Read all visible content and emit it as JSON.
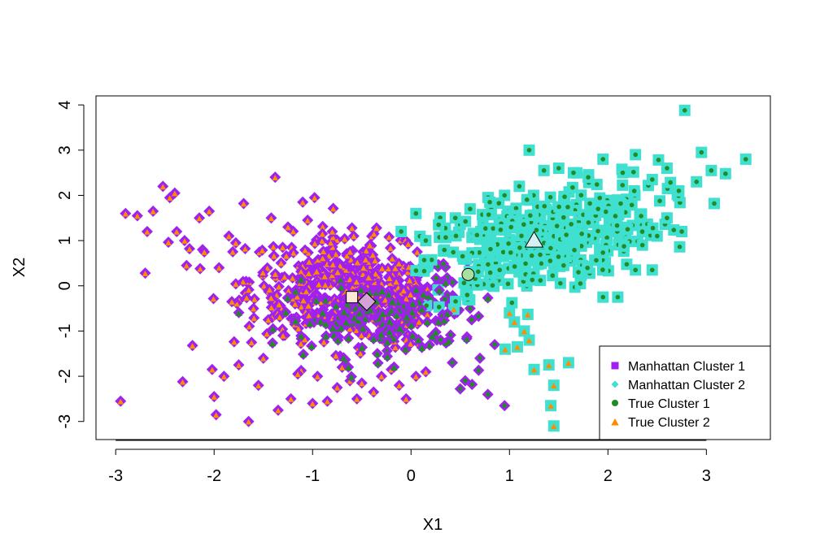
{
  "chart_data": {
    "type": "scatter",
    "title": "",
    "xlabel": "X1",
    "ylabel": "X2",
    "xlim": [
      -3.2,
      3.65
    ],
    "ylim": [
      -3.4,
      4.2
    ],
    "xticks": [
      -3,
      -2,
      -1,
      0,
      1,
      2,
      3
    ],
    "yticks": [
      -3,
      -2,
      -1,
      0,
      1,
      2,
      3,
      4
    ],
    "xtick_labels": [
      "-3",
      "-2",
      "-1",
      "0",
      "1",
      "2",
      "3"
    ],
    "ytick_labels": [
      "-3",
      "-2",
      "-1",
      "0",
      "1",
      "2",
      "3",
      "4"
    ],
    "legend_position": "bottom-right",
    "legend": [
      {
        "label": "Manhattan Cluster 1",
        "marker": "square",
        "color": "#A020F0"
      },
      {
        "label": "Manhattan Cluster 2",
        "marker": "diamond",
        "color": "#40E0D0"
      },
      {
        "label": "True Cluster 1",
        "marker": "circle",
        "color": "#228B22"
      },
      {
        "label": "True Cluster 2",
        "marker": "triangle",
        "color": "#FF8C00"
      }
    ],
    "colors": {
      "manhattan_1": "#A020F0",
      "manhattan_2": "#40E0D0",
      "true_1": "#228B22",
      "true_2": "#FF8C00"
    },
    "series": [
      {
        "cluster": "manhattan_1",
        "marker": "diamond",
        "points": [
          [
            -2.95,
            -2.55
          ],
          [
            -2.9,
            1.6
          ],
          [
            -2.78,
            1.55
          ],
          [
            -2.7,
            0.28
          ],
          [
            -2.68,
            1.2
          ],
          [
            -2.62,
            1.65
          ],
          [
            -2.52,
            2.2
          ],
          [
            -2.45,
            1.95
          ],
          [
            -2.4,
            2.05
          ],
          [
            -2.38,
            1.2
          ],
          [
            -2.32,
            -2.12
          ],
          [
            -2.3,
            1.0
          ],
          [
            -2.28,
            0.45
          ],
          [
            -2.25,
            0.82
          ],
          [
            -2.22,
            -1.32
          ],
          [
            -2.15,
            1.5
          ],
          [
            -2.1,
            0.75
          ],
          [
            -2.05,
            1.65
          ],
          [
            -2.02,
            -1.85
          ],
          [
            -2.0,
            -2.45
          ],
          [
            -1.98,
            -2.85
          ],
          [
            -1.95,
            0.4
          ],
          [
            -1.9,
            -2.0
          ],
          [
            -1.85,
            1.1
          ],
          [
            -1.82,
            -0.35
          ],
          [
            -1.78,
            0.95
          ],
          [
            -1.75,
            -1.75
          ],
          [
            -1.7,
            1.82
          ],
          [
            -1.65,
            -3.0
          ],
          [
            -1.62,
            -1.25
          ],
          [
            -1.6,
            -0.5
          ],
          [
            -1.55,
            -2.2
          ],
          [
            -1.5,
            -1.6
          ],
          [
            -1.45,
            -0.75
          ],
          [
            -1.42,
            1.5
          ],
          [
            -1.38,
            2.4
          ],
          [
            -1.35,
            -2.75
          ],
          [
            -1.3,
            -1.1
          ],
          [
            -1.25,
            1.3
          ],
          [
            -1.22,
            -2.5
          ],
          [
            -1.18,
            -0.85
          ],
          [
            -1.15,
            -1.95
          ],
          [
            -1.1,
            1.85
          ],
          [
            -1.05,
            1.45
          ],
          [
            -1.0,
            -2.6
          ],
          [
            -0.98,
            1.95
          ],
          [
            -0.95,
            -2.0
          ],
          [
            -0.9,
            1.15
          ],
          [
            -0.85,
            -2.55
          ],
          [
            -0.8,
            1.2
          ],
          [
            -0.75,
            -2.25
          ],
          [
            -0.7,
            -1.8
          ],
          [
            -0.62,
            -2.1
          ],
          [
            -0.6,
            1.28
          ],
          [
            -0.55,
            -2.5
          ],
          [
            -0.5,
            -2.15
          ],
          [
            -0.42,
            0.9
          ],
          [
            -0.38,
            -2.35
          ],
          [
            -0.35,
            1.28
          ],
          [
            -0.3,
            -2.0
          ],
          [
            -0.2,
            -1.85
          ],
          [
            -0.12,
            -2.2
          ],
          [
            -0.05,
            -2.5
          ],
          [
            0.05,
            -2.0
          ],
          [
            0.15,
            -1.9
          ],
          [
            0.2,
            -0.3
          ],
          [
            0.3,
            -1.2
          ],
          [
            0.42,
            -1.7
          ],
          [
            0.5,
            -2.28
          ],
          [
            0.55,
            -2.1
          ],
          [
            0.6,
            -0.5
          ],
          [
            0.62,
            -2.18
          ],
          [
            0.7,
            -1.6
          ],
          [
            0.78,
            -2.4
          ],
          [
            0.85,
            -1.3
          ],
          [
            0.95,
            -2.65
          ]
        ],
        "dense_region": {
          "center": [
            -0.55,
            -0.15
          ],
          "spread": [
            0.55,
            0.55
          ]
        }
      },
      {
        "cluster": "manhattan_2",
        "marker": "square",
        "points": [
          [
            2.78,
            3.88
          ],
          [
            3.4,
            2.8
          ],
          [
            2.95,
            2.95
          ],
          [
            3.05,
            2.55
          ],
          [
            2.9,
            2.3
          ],
          [
            3.08,
            1.82
          ],
          [
            2.72,
            2.1
          ],
          [
            2.6,
            2.6
          ],
          [
            2.45,
            2.35
          ],
          [
            2.28,
            2.9
          ],
          [
            2.15,
            2.5
          ],
          [
            1.95,
            2.8
          ],
          [
            1.8,
            2.4
          ],
          [
            1.65,
            2.5
          ],
          [
            1.5,
            2.6
          ],
          [
            1.35,
            2.55
          ],
          [
            1.2,
            3.0
          ],
          [
            1.1,
            2.2
          ],
          [
            0.95,
            2.0
          ],
          [
            0.8,
            1.85
          ],
          [
            0.6,
            1.7
          ],
          [
            0.45,
            1.5
          ],
          [
            0.28,
            1.35
          ],
          [
            0.05,
            1.6
          ],
          [
            -0.1,
            1.2
          ],
          [
            0.15,
            1.0
          ],
          [
            2.45,
            0.35
          ],
          [
            2.28,
            0.35
          ],
          [
            2.1,
            -0.25
          ],
          [
            1.95,
            -0.25
          ],
          [
            1.72,
            0.05
          ],
          [
            1.6,
            -1.7
          ],
          [
            1.45,
            -2.2
          ],
          [
            1.45,
            -3.1
          ],
          [
            1.42,
            -2.65
          ],
          [
            1.4,
            -1.75
          ],
          [
            1.25,
            -1.85
          ],
          [
            1.2,
            -1.2
          ],
          [
            1.15,
            -1.0
          ],
          [
            1.08,
            -1.35
          ],
          [
            1.05,
            -0.8
          ],
          [
            1.0,
            -0.6
          ],
          [
            2.2,
            1.25
          ],
          [
            2.35,
            0.9
          ],
          [
            2.5,
            1.1
          ],
          [
            2.6,
            1.5
          ],
          [
            2.75,
            1.2
          ],
          [
            1.9,
            1.7
          ],
          [
            1.7,
            0.3
          ],
          [
            1.55,
            0.45
          ],
          [
            0.9,
            0.35
          ]
        ],
        "dense_region": {
          "center": [
            1.3,
            1.0
          ],
          "spread": [
            0.6,
            0.55
          ]
        }
      }
    ],
    "centers": [
      {
        "label": "Manhattan center 1",
        "marker": "diamond",
        "x": -0.45,
        "y": -0.35,
        "fill": "#D8A0D8"
      },
      {
        "label": "Manhattan center 2",
        "marker": "triangle",
        "x": 1.25,
        "y": 1.0,
        "fill": "#D8F0F0"
      },
      {
        "label": "True center 1",
        "marker": "circle",
        "x": 0.58,
        "y": 0.25,
        "fill": "#A8E0A0"
      },
      {
        "label": "True center 2",
        "marker": "square",
        "x": -0.6,
        "y": -0.25,
        "fill": "#FFE8D8"
      }
    ]
  }
}
